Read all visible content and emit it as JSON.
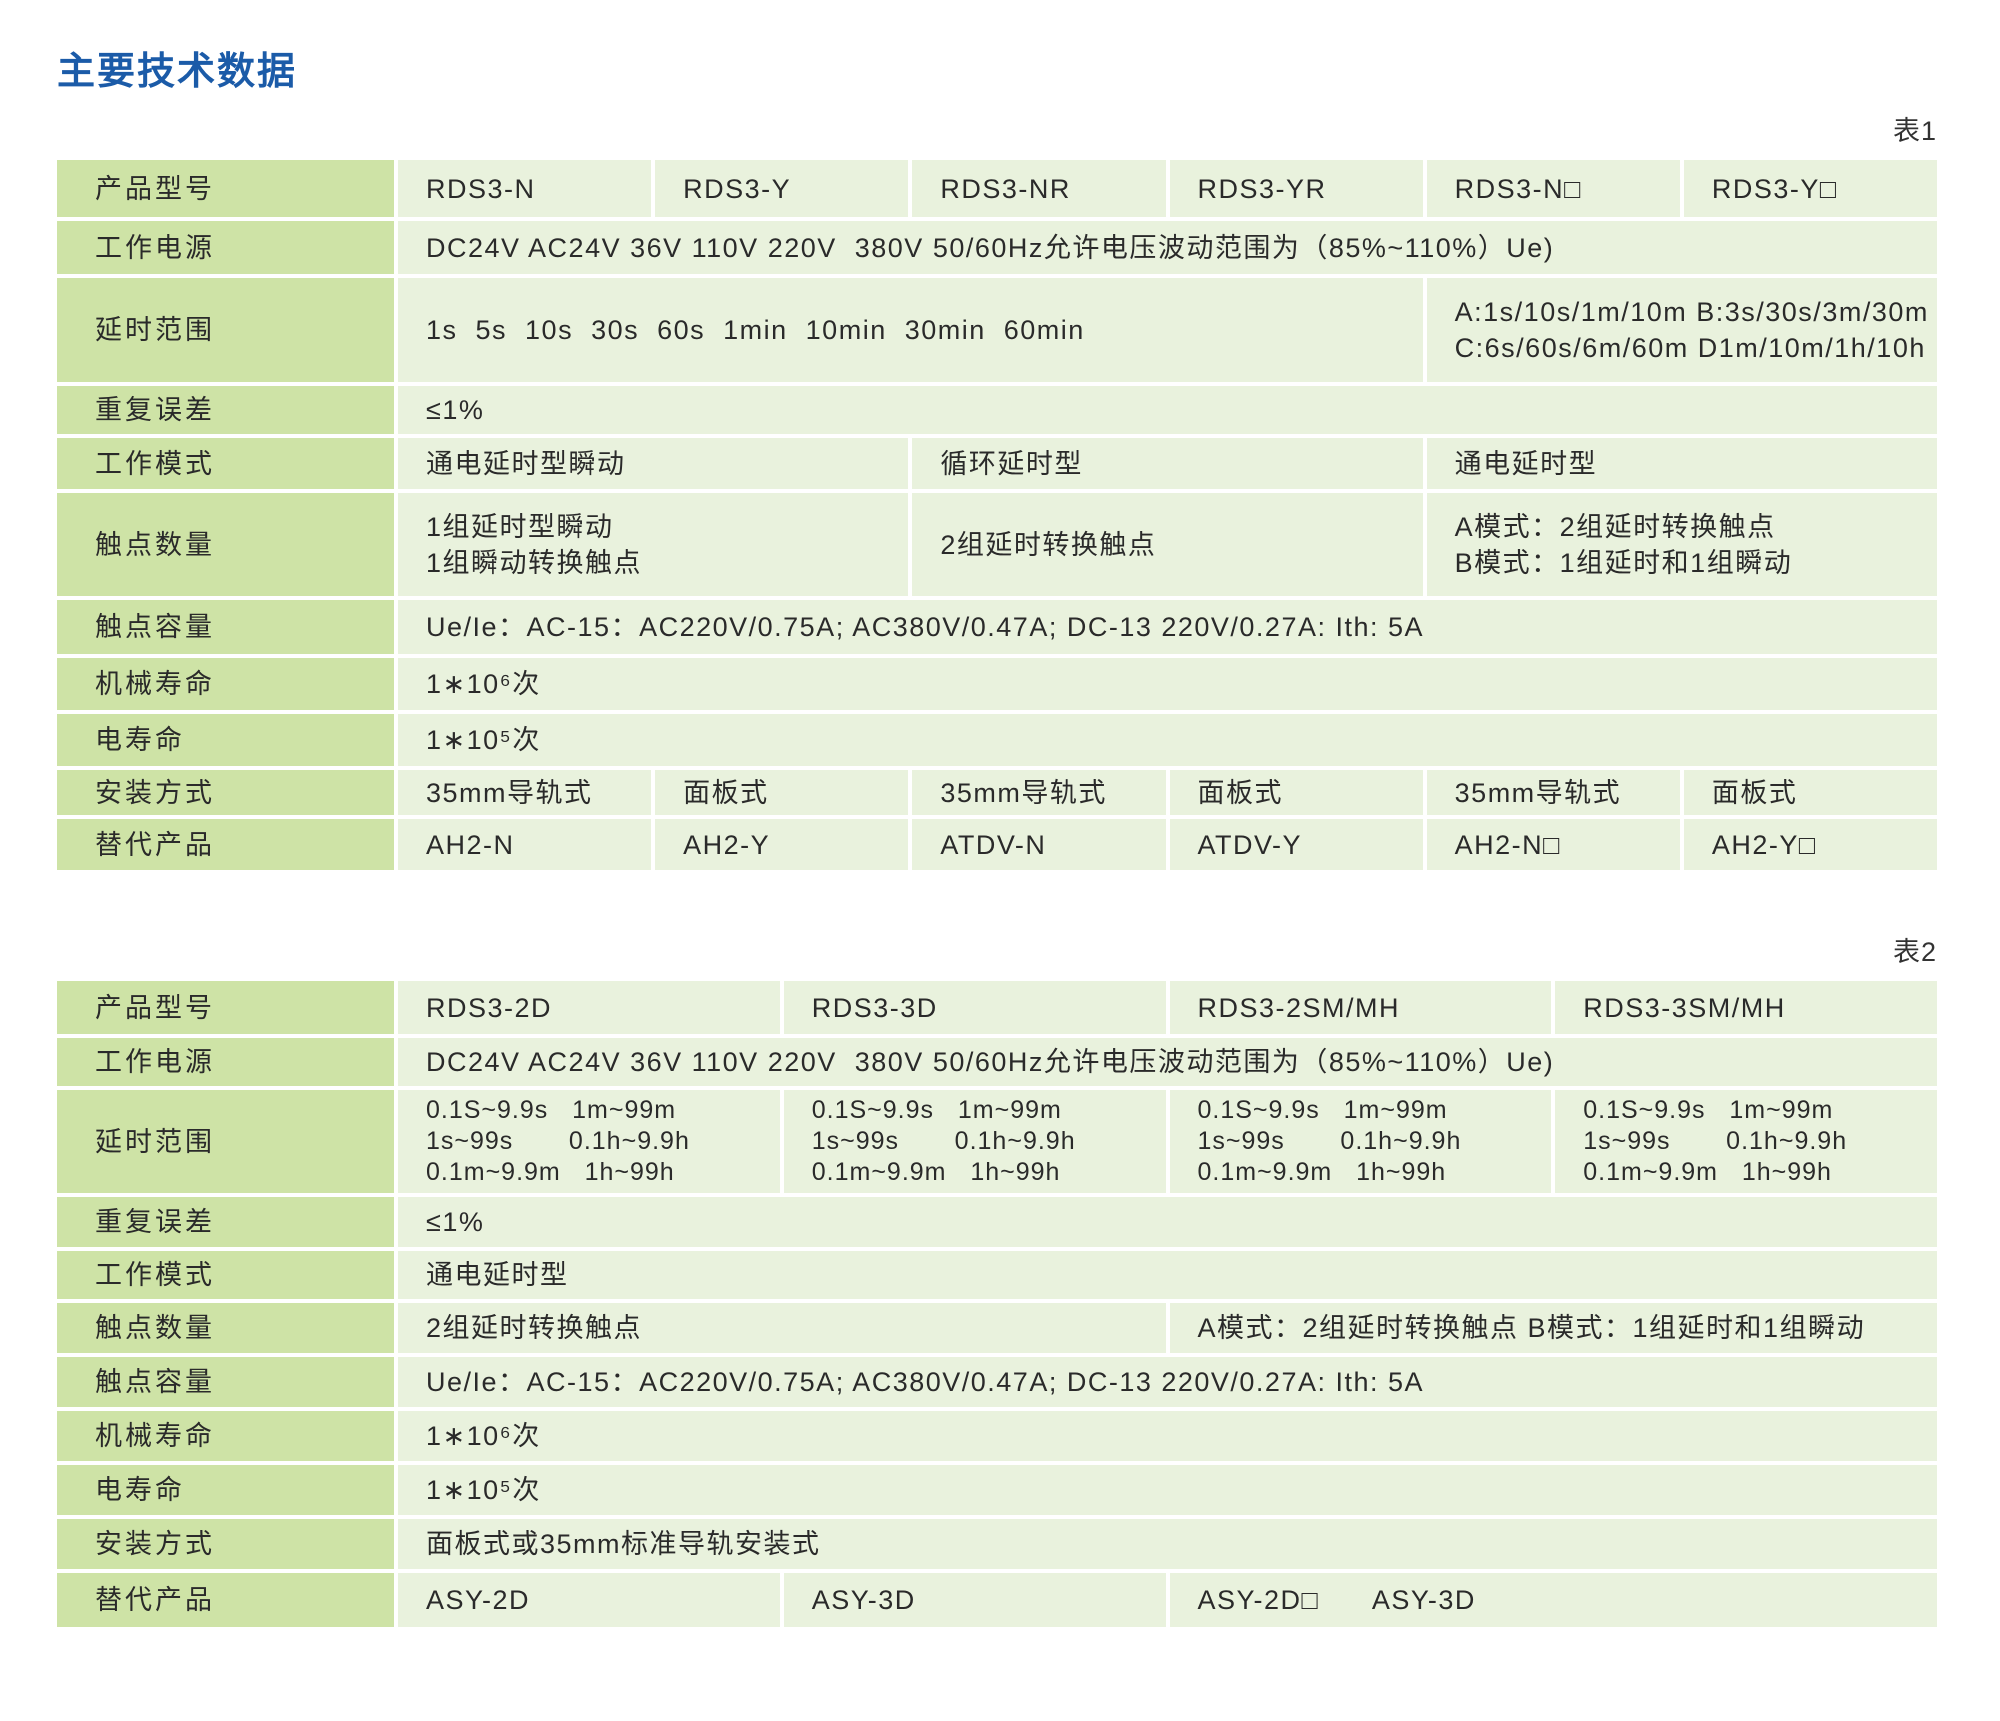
{
  "page": {
    "title": "主要技术数据",
    "accent_color": "#1b5ba8",
    "label_cell_color": "#cee3a6",
    "value_cell_color": "#e9f2dd"
  },
  "table1": {
    "caption": "表1",
    "rows": [
      {
        "label": "产品型号",
        "cells": [
          {
            "text": "RDS3-N",
            "span": 1
          },
          {
            "text": "RDS3-Y",
            "span": 1
          },
          {
            "text": "RDS3-NR",
            "span": 1
          },
          {
            "text": "RDS3-YR",
            "span": 1
          },
          {
            "text": "RDS3-N□",
            "span": 1
          },
          {
            "text": "RDS3-Y□",
            "span": 1
          }
        ]
      },
      {
        "label": "工作电源",
        "cells": [
          {
            "text": "DC24V AC24V 36V 110V 220V  380V 50/60Hz允许电压波动范围为（85%~110%）Ue)",
            "span": 6
          }
        ]
      },
      {
        "label": "延时范围",
        "cells": [
          {
            "text": "1s  5s  10s  30s  60s  1min  10min  30min  60min",
            "span": 4
          },
          {
            "text": "A:1s/10s/1m/10m B:3s/30s/3m/30m\nC:6s/60s/6m/60m D1m/10m/1h/10h",
            "span": 2
          }
        ]
      },
      {
        "label": "重复误差",
        "cells": [
          {
            "text": "≤1%",
            "span": 6
          }
        ]
      },
      {
        "label": "工作模式",
        "cells": [
          {
            "text": "通电延时型瞬动",
            "span": 2
          },
          {
            "text": "循环延时型",
            "span": 2
          },
          {
            "text": "通电延时型",
            "span": 2
          }
        ]
      },
      {
        "label": "触点数量",
        "cells": [
          {
            "text": "1组延时型瞬动\n1组瞬动转换触点",
            "span": 2
          },
          {
            "text": "2组延时转换触点",
            "span": 2
          },
          {
            "text": "A模式：2组延时转换触点\nB模式：1组延时和1组瞬动",
            "span": 2
          }
        ]
      },
      {
        "label": "触点容量",
        "cells": [
          {
            "text": "Ue/Ie：AC-15：AC220V/0.75A; AC380V/0.47A; DC-13 220V/0.27A: Ith: 5A",
            "span": 6
          }
        ]
      },
      {
        "label": "机械寿命",
        "cells": [
          {
            "text": "1∗10⁶次",
            "span": 6
          }
        ]
      },
      {
        "label": "电寿命",
        "cells": [
          {
            "text": "1∗10⁵次",
            "span": 6
          }
        ]
      },
      {
        "label": "安装方式",
        "cells": [
          {
            "text": "35mm导轨式",
            "span": 1
          },
          {
            "text": "面板式",
            "span": 1
          },
          {
            "text": "35mm导轨式",
            "span": 1
          },
          {
            "text": "面板式",
            "span": 1
          },
          {
            "text": "35mm导轨式",
            "span": 1
          },
          {
            "text": "面板式",
            "span": 1
          }
        ]
      },
      {
        "label": "替代产品",
        "cells": [
          {
            "text": "AH2-N",
            "span": 1
          },
          {
            "text": "AH2-Y",
            "span": 1
          },
          {
            "text": "ATDV-N",
            "span": 1
          },
          {
            "text": "ATDV-Y",
            "span": 1
          },
          {
            "text": "AH2-N□",
            "span": 1
          },
          {
            "text": "AH2-Y□",
            "span": 1
          }
        ]
      }
    ]
  },
  "table2": {
    "caption": "表2",
    "rows": [
      {
        "label": "产品型号",
        "cells": [
          {
            "text": "RDS3-2D",
            "span": 1
          },
          {
            "text": "RDS3-3D",
            "span": 1
          },
          {
            "text": "RDS3-2SM/MH",
            "span": 1
          },
          {
            "text": "RDS3-3SM/MH",
            "span": 1
          }
        ]
      },
      {
        "label": "工作电源",
        "cells": [
          {
            "text": "DC24V AC24V 36V 110V 220V  380V 50/60Hz允许电压波动范围为（85%~110%）Ue)",
            "span": 4
          }
        ]
      },
      {
        "label": "延时范围",
        "cells": [
          {
            "text": "0.1S~9.9s   1m~99m\n1s~99s       0.1h~9.9h\n0.1m~9.9m   1h~99h",
            "span": 1
          },
          {
            "text": "0.1S~9.9s   1m~99m\n1s~99s       0.1h~9.9h\n0.1m~9.9m   1h~99h",
            "span": 1
          },
          {
            "text": "0.1S~9.9s   1m~99m\n1s~99s       0.1h~9.9h\n0.1m~9.9m   1h~99h",
            "span": 1
          },
          {
            "text": "0.1S~9.9s   1m~99m\n1s~99s       0.1h~9.9h\n0.1m~9.9m   1h~99h",
            "span": 1
          }
        ]
      },
      {
        "label": "重复误差",
        "cells": [
          {
            "text": "≤1%",
            "span": 4
          }
        ]
      },
      {
        "label": "工作模式",
        "cells": [
          {
            "text": "通电延时型",
            "span": 4
          }
        ]
      },
      {
        "label": "触点数量",
        "cells": [
          {
            "text": "2组延时转换触点",
            "span": 2
          },
          {
            "text": "A模式：2组延时转换触点 B模式：1组延时和1组瞬动",
            "span": 2
          }
        ]
      },
      {
        "label": "触点容量",
        "cells": [
          {
            "text": "Ue/Ie：AC-15：AC220V/0.75A; AC380V/0.47A; DC-13 220V/0.27A: Ith: 5A",
            "span": 4
          }
        ]
      },
      {
        "label": "机械寿命",
        "cells": [
          {
            "text": "1∗10⁶次",
            "span": 4
          }
        ]
      },
      {
        "label": "电寿命",
        "cells": [
          {
            "text": "1∗10⁵次",
            "span": 4
          }
        ]
      },
      {
        "label": "安装方式",
        "cells": [
          {
            "text": "面板式或35mm标准导轨安装式",
            "span": 4
          }
        ]
      },
      {
        "label": "替代产品",
        "cells": [
          {
            "text": "ASY-2D",
            "span": 1
          },
          {
            "text": "ASY-3D",
            "span": 1
          },
          {
            "text": "ASY-2D□      ASY-3D",
            "span": 2
          }
        ]
      }
    ]
  }
}
